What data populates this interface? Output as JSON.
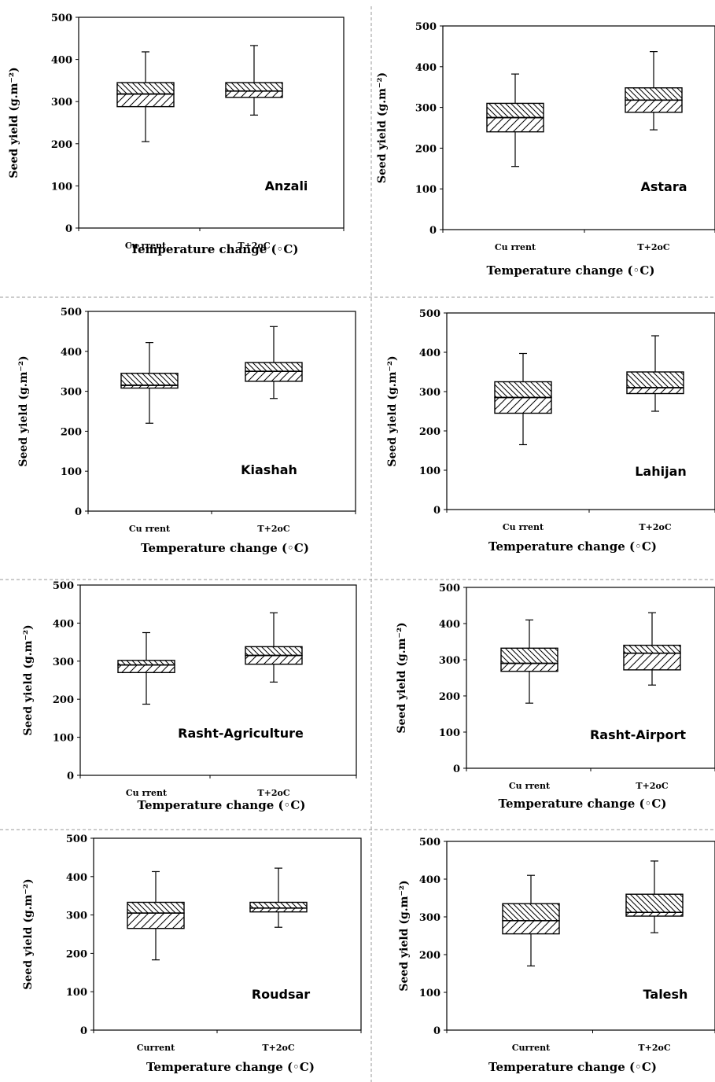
{
  "chart_data": [
    {
      "type": "boxplot",
      "annotation": "Anzali",
      "xlabel": "Temperature change (◦C)",
      "ylabel": "Seed yield (g.m⁻²)",
      "ylim": [
        0,
        500
      ],
      "yticks": [
        0,
        100,
        200,
        300,
        400,
        500
      ],
      "categories": [
        "Cu rrent",
        "T+2oC"
      ],
      "boxes": [
        {
          "min": 205,
          "q1": 288,
          "median": 318,
          "q3": 345,
          "max": 418
        },
        {
          "min": 268,
          "q1": 310,
          "median": 325,
          "q3": 345,
          "max": 433
        }
      ]
    },
    {
      "type": "boxplot",
      "annotation": "Astara",
      "xlabel": "Temperature change (◦C)",
      "ylabel": "Seed yield (g.m⁻²)",
      "ylim": [
        0,
        500
      ],
      "yticks": [
        0,
        100,
        200,
        300,
        400,
        500
      ],
      "categories": [
        "Cu rrent",
        "T+2oC"
      ],
      "boxes": [
        {
          "min": 155,
          "q1": 240,
          "median": 275,
          "q3": 310,
          "max": 382
        },
        {
          "min": 245,
          "q1": 288,
          "median": 318,
          "q3": 348,
          "max": 437
        }
      ]
    },
    {
      "type": "boxplot",
      "annotation": "Kiashah",
      "xlabel": "Temperature change (◦C)",
      "ylabel": "Seed yield (g.m⁻²)",
      "ylim": [
        0,
        500
      ],
      "yticks": [
        0,
        100,
        200,
        300,
        400,
        500
      ],
      "categories": [
        "Cu rrent",
        "T+2oC"
      ],
      "boxes": [
        {
          "min": 220,
          "q1": 308,
          "median": 315,
          "q3": 345,
          "max": 422
        },
        {
          "min": 282,
          "q1": 325,
          "median": 350,
          "q3": 372,
          "max": 462
        }
      ]
    },
    {
      "type": "boxplot",
      "annotation": "Lahijan",
      "xlabel": "Temperature change (◦C)",
      "ylabel": "Seed yield (g.m⁻²)",
      "ylim": [
        0,
        500
      ],
      "yticks": [
        0,
        100,
        200,
        300,
        400,
        500
      ],
      "categories": [
        "Cu rrent",
        "T+2oC"
      ],
      "boxes": [
        {
          "min": 165,
          "q1": 245,
          "median": 285,
          "q3": 325,
          "max": 397
        },
        {
          "min": 250,
          "q1": 295,
          "median": 310,
          "q3": 350,
          "max": 442
        }
      ]
    },
    {
      "type": "boxplot",
      "annotation": "Rasht-Agriculture",
      "xlabel": "Temperature change (◦C)",
      "ylabel": "Seed yield (g.m⁻²)",
      "ylim": [
        0,
        500
      ],
      "yticks": [
        0,
        100,
        200,
        300,
        400,
        500
      ],
      "categories": [
        "Cu rrent",
        "T+2oC"
      ],
      "boxes": [
        {
          "min": 187,
          "q1": 270,
          "median": 290,
          "q3": 302,
          "max": 375
        },
        {
          "min": 245,
          "q1": 292,
          "median": 315,
          "q3": 338,
          "max": 427
        }
      ]
    },
    {
      "type": "boxplot",
      "annotation": "Rasht-Airport",
      "xlabel": "Temperature change (◦C)",
      "ylabel": "Seed yield (g.m⁻²)",
      "ylim": [
        0,
        500
      ],
      "yticks": [
        0,
        100,
        200,
        300,
        400,
        500
      ],
      "categories": [
        "Cu rrent",
        "T+2oC"
      ],
      "boxes": [
        {
          "min": 180,
          "q1": 268,
          "median": 290,
          "q3": 332,
          "max": 410
        },
        {
          "min": 230,
          "q1": 272,
          "median": 318,
          "q3": 340,
          "max": 430
        }
      ]
    },
    {
      "type": "boxplot",
      "annotation": "Roudsar",
      "xlabel": "Temperature change (◦C)",
      "ylabel": "Seed yield (g.m⁻²)",
      "ylim": [
        0,
        500
      ],
      "yticks": [
        0,
        100,
        200,
        300,
        400,
        500
      ],
      "categories": [
        "Current",
        "T+2oC"
      ],
      "boxes": [
        {
          "min": 183,
          "q1": 265,
          "median": 305,
          "q3": 333,
          "max": 413
        },
        {
          "min": 268,
          "q1": 308,
          "median": 318,
          "q3": 333,
          "max": 422
        }
      ]
    },
    {
      "type": "boxplot",
      "annotation": "Talesh",
      "xlabel": "Temperature change (◦C)",
      "ylabel": "Seed yield (g.m⁻²)",
      "ylim": [
        0,
        500
      ],
      "yticks": [
        0,
        100,
        200,
        300,
        400,
        500
      ],
      "categories": [
        "Current",
        "T+2oC"
      ],
      "boxes": [
        {
          "min": 170,
          "q1": 255,
          "median": 290,
          "q3": 335,
          "max": 410
        },
        {
          "min": 258,
          "q1": 302,
          "median": 312,
          "q3": 360,
          "max": 448
        }
      ]
    }
  ]
}
